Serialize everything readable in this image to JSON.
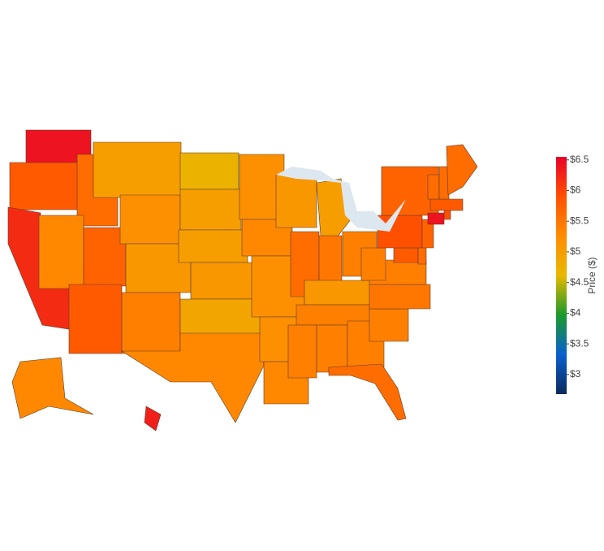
{
  "chart_data": {
    "type": "choropleth",
    "values": [
      6.4,
      5.8,
      6.2,
      5.6,
      5.3,
      5.7,
      5.8,
      5.0,
      5.2,
      5.1,
      5.4,
      4.7,
      5.0,
      5.0,
      5.1,
      5.3,
      4.9,
      5.2,
      5.3,
      5.2,
      5.2,
      5.3,
      5.1,
      5.6,
      5.0,
      5.5,
      5.4,
      5.1,
      5.4,
      5.4,
      5.4,
      5.4,
      5.6,
      5.4,
      5.5,
      5.4,
      5.4,
      5.8,
      5.6,
      5.9,
      5.7,
      5.7,
      6.4,
      5.9,
      5.8,
      5.6,
      5.6,
      5.6,
      5.3,
      6.3
    ],
    "colorscale": [
      "#0b2a5a",
      "#0a5fd0",
      "#1a9a2a",
      "#e8b800",
      "#ff8c00",
      "#ff5000",
      "#e8002a"
    ],
    "zlim": [
      2.68,
      6.55
    ],
    "colorbar_title": "Price ($)",
    "colorbar_ticks": [
      {
        "value": 3,
        "label": "$3"
      },
      {
        "value": 3.5,
        "label": "$3.5"
      },
      {
        "value": 4,
        "label": "$4"
      },
      {
        "value": 4.5,
        "label": "$4.5"
      },
      {
        "value": 5,
        "label": "$5"
      },
      {
        "value": 5.5,
        "label": "$5.5"
      },
      {
        "value": 6,
        "label": "$6"
      },
      {
        "value": 6.5,
        "label": "$6.5"
      }
    ]
  }
}
